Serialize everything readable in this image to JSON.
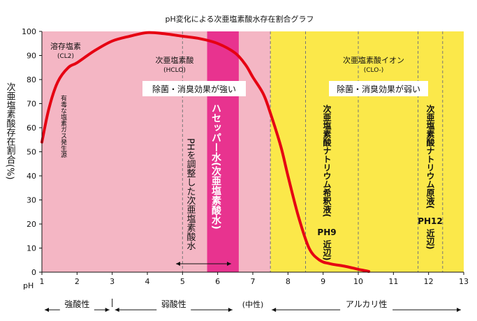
{
  "chart_data": {
    "type": "area",
    "title": "pH変化による次亜塩素酸水存在割合グラフ",
    "ylabel": "次亜塩素酸存在割合(%)",
    "xlabel": "pH",
    "xlim": [
      1,
      13
    ],
    "ylim": [
      0,
      100
    ],
    "x_ticks": [
      "1",
      "2",
      "3",
      "4",
      "5",
      "6",
      "7",
      "8",
      "9",
      "10",
      "11",
      "12",
      "13"
    ],
    "y_ticks": [
      "0",
      "10",
      "20",
      "30",
      "40",
      "50",
      "60",
      "70",
      "80",
      "90",
      "100"
    ],
    "grid": false,
    "regions": [
      {
        "name": "cl2",
        "x_from": 1,
        "x_to": 3,
        "color": "#c6f0a2"
      },
      {
        "name": "hclo",
        "x_from": 1,
        "x_to": 7.5,
        "color": "#f4b6c4"
      },
      {
        "name": "clo",
        "x_from": 7.5,
        "x_to": 13,
        "color": "#fbe84a"
      },
      {
        "name": "hasepa",
        "x_from": 5.7,
        "x_to": 6.6,
        "color": "#e8338f"
      }
    ],
    "dashed_lines_x": [
      5,
      7.5,
      8.5,
      10,
      11.7,
      12.4
    ],
    "series": [
      {
        "name": "",
        "color": "#e60012",
        "x": [
          1.0,
          1.2,
          1.45,
          1.75,
          2.0,
          2.5,
          3.0,
          3.5,
          4.0,
          4.5,
          5.0,
          5.5,
          6.0,
          6.5,
          6.8,
          7.0,
          7.3,
          7.5,
          7.8,
          8.0,
          8.3,
          8.6,
          8.9,
          9.2,
          9.6,
          10.0,
          10.3
        ],
        "y": [
          54,
          68,
          79,
          85,
          87,
          92,
          96,
          98,
          99.5,
          99,
          98,
          97,
          95,
          91,
          86,
          81,
          74,
          66,
          52,
          40,
          23,
          10,
          5,
          3.5,
          2.5,
          1.2,
          0.3
        ]
      }
    ],
    "annotations": {
      "cl2_title": "溶存塩素",
      "cl2_formula": "(CL2)",
      "cl2_note": "有毒な塩素ガス発生源",
      "hclo_title": "次亜塩素酸",
      "hclo_formula": "(HCLO)",
      "clo_title": "次亜塩素酸イオン",
      "clo_formula": "(CLO-)",
      "strong_effect": "除菌・消臭効果が強い",
      "weak_effect": "除菌・消臭効果が弱い",
      "hasepa": "ハセッパー水(次亜塩素酸水)",
      "adjusted": "PHを調整した次亜塩素酸水",
      "naocl_dilute": "次亜塩素酸ナトリウム希釈液(",
      "naocl_dilute_ph": "PH9",
      "naocl_dilute_near": "近辺)",
      "naocl_stock": "次亜塩素酸ナトリウム原液(",
      "naocl_stock_ph": "PH12",
      "naocl_stock_near": "近辺)"
    },
    "bottom_ranges": [
      {
        "label": "強酸性",
        "from": 1,
        "to": 3
      },
      {
        "label": "弱酸性",
        "from": 3,
        "to": 6.5
      },
      {
        "label": "(中性)",
        "at": 7
      },
      {
        "label": "アルカリ性",
        "from": 7.5,
        "to": 13
      }
    ]
  }
}
